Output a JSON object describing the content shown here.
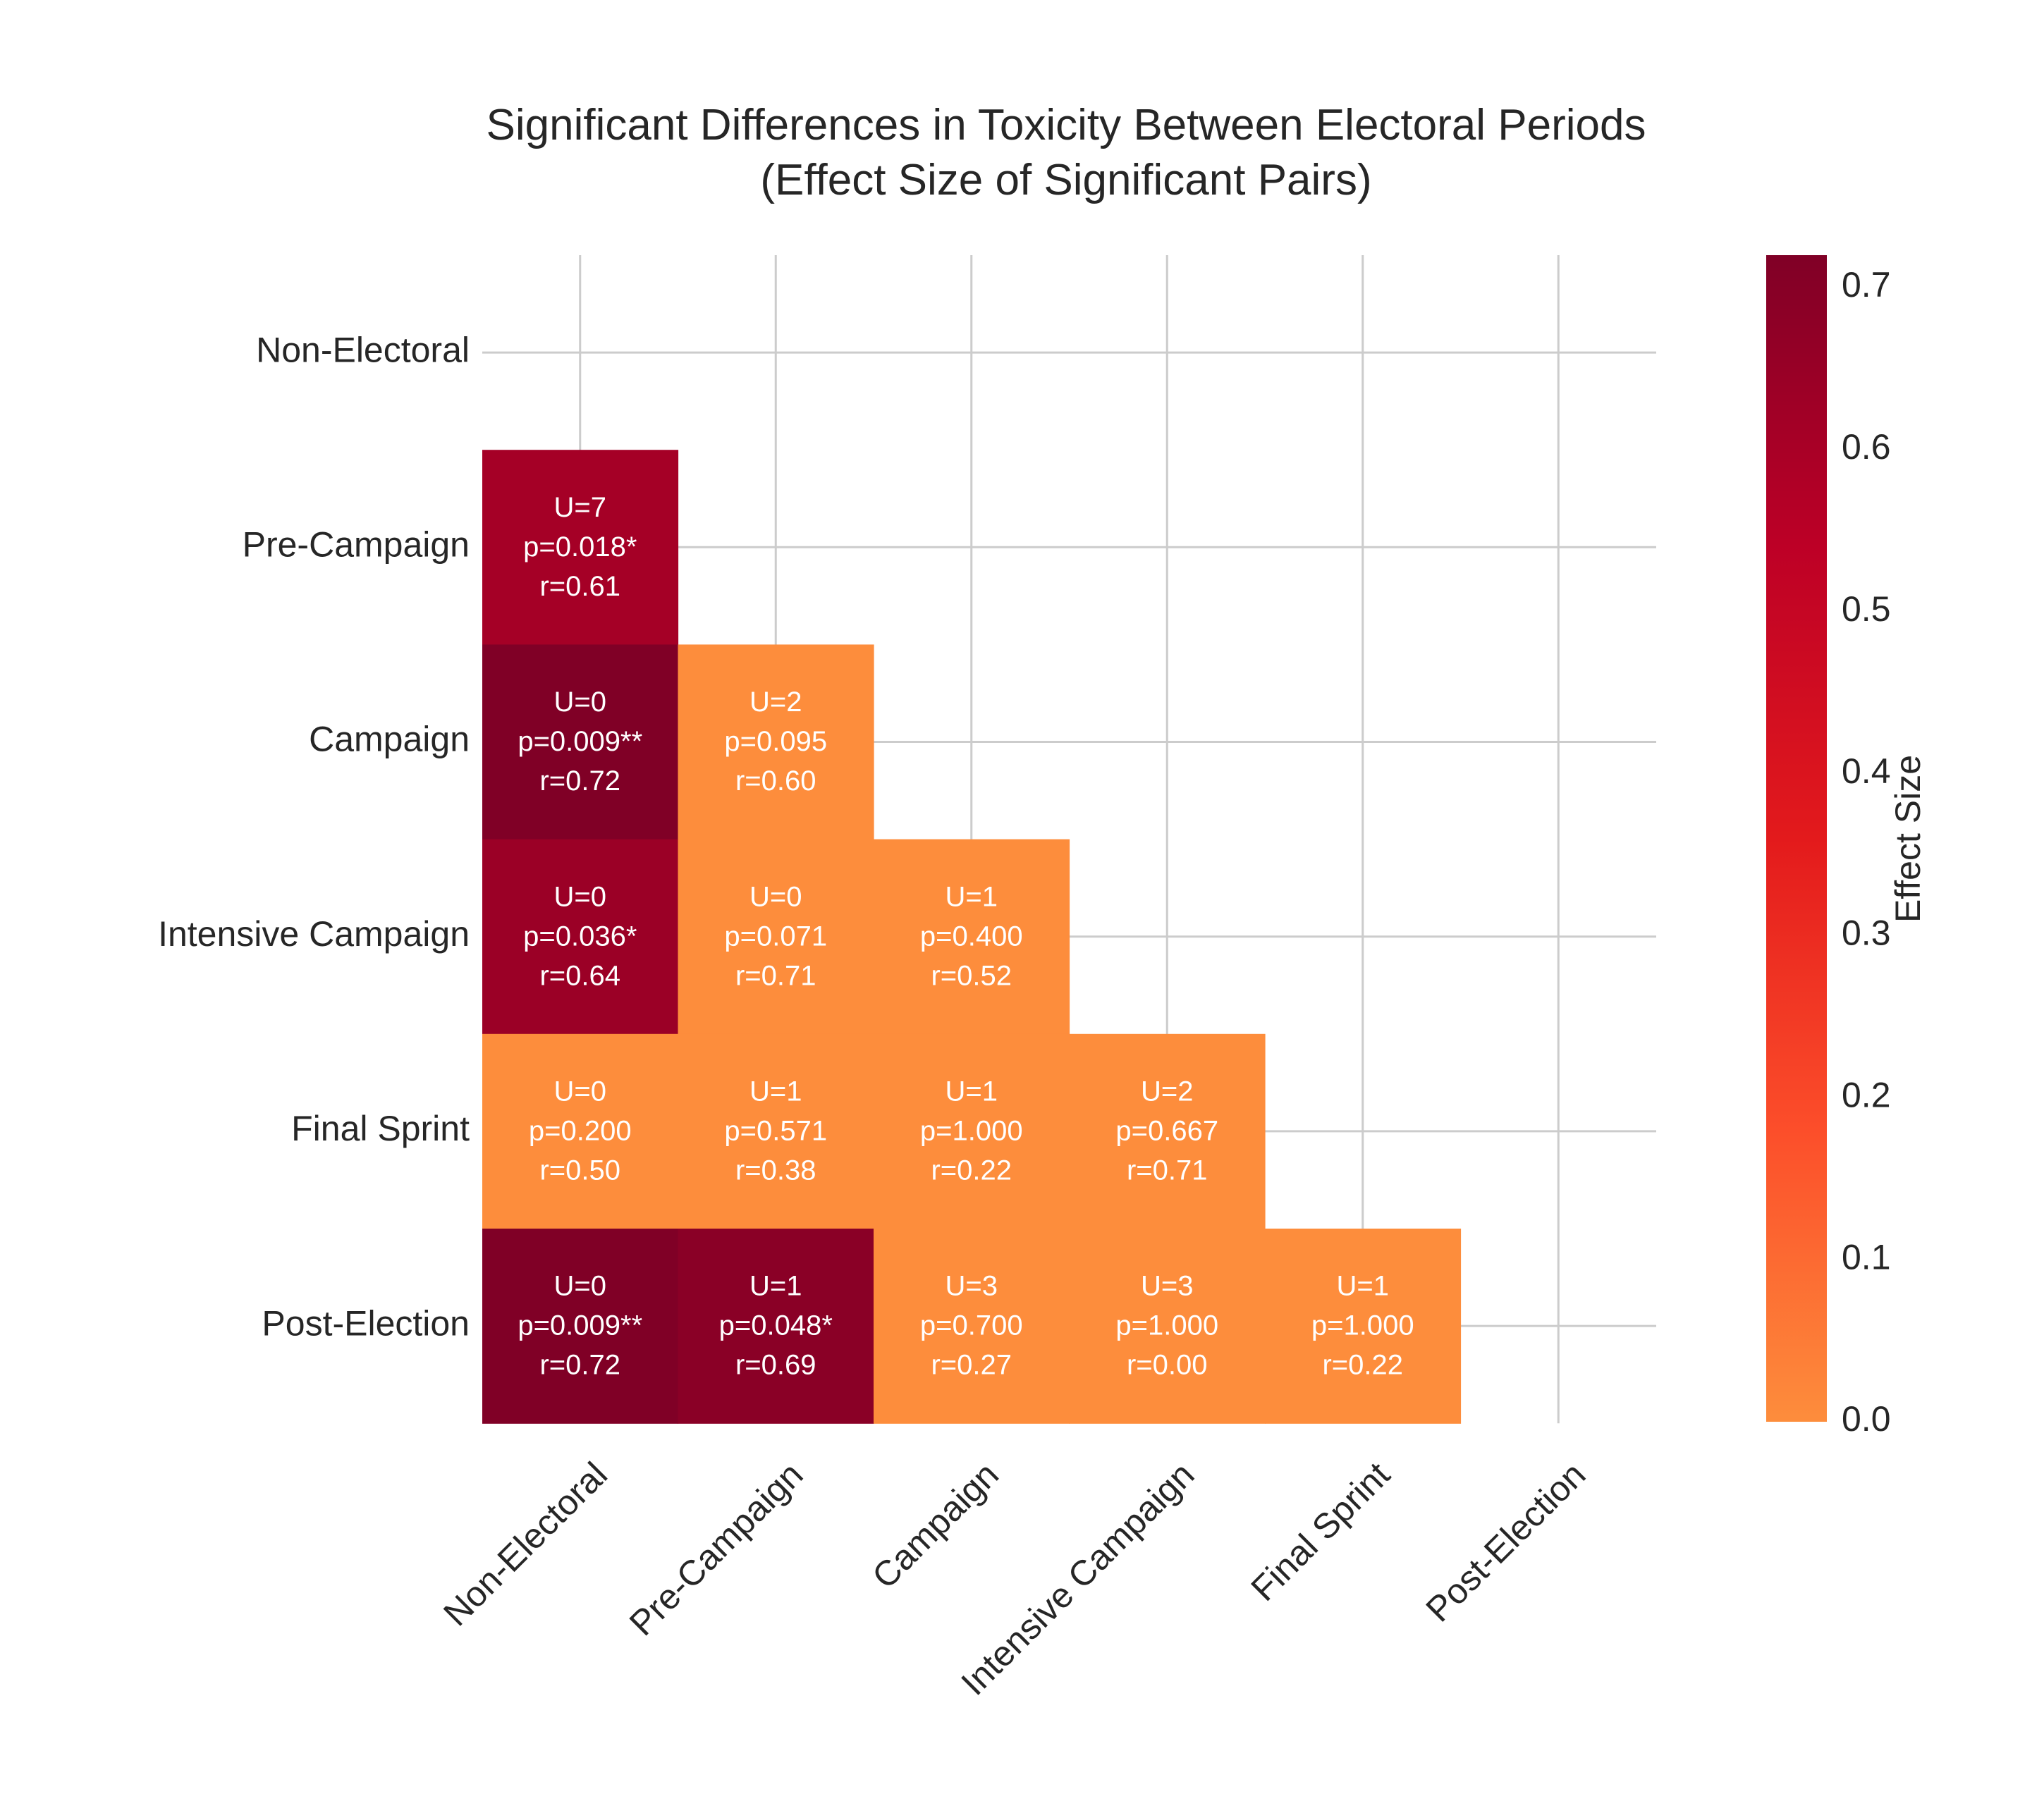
{
  "chart_data": {
    "type": "heatmap",
    "title": "Significant Differences in Toxicity Between Electoral Periods",
    "subtitle": "(Effect Size of Significant Pairs)",
    "xlabel": "",
    "ylabel": "",
    "categories": [
      "Non-Electoral",
      "Pre-Campaign",
      "Campaign",
      "Intensive Campaign",
      "Final Sprint",
      "Post-Election"
    ],
    "grid": true,
    "colorbar": {
      "label": "Effect Size",
      "range": [
        0.0,
        0.72
      ],
      "ticks": [
        "0.0",
        "0.1",
        "0.2",
        "0.3",
        "0.4",
        "0.5",
        "0.6",
        "0.7"
      ],
      "colors": [
        "#fd8d3c",
        "#fc4e2a",
        "#e31a1c",
        "#bd0026",
        "#800026"
      ],
      "placement": "right"
    },
    "nonsignificant_color": "#fd8d3c",
    "cells": [
      {
        "row": 1,
        "col": 0,
        "U": "U=7",
        "p": "p=0.018*",
        "r": "r=0.61",
        "effect": 0.61,
        "significant": true
      },
      {
        "row": 2,
        "col": 0,
        "U": "U=0",
        "p": "p=0.009**",
        "r": "r=0.72",
        "effect": 0.72,
        "significant": true
      },
      {
        "row": 2,
        "col": 1,
        "U": "U=2",
        "p": "p=0.095",
        "r": "r=0.60",
        "effect": 0.6,
        "significant": false
      },
      {
        "row": 3,
        "col": 0,
        "U": "U=0",
        "p": "p=0.036*",
        "r": "r=0.64",
        "effect": 0.64,
        "significant": true
      },
      {
        "row": 3,
        "col": 1,
        "U": "U=0",
        "p": "p=0.071",
        "r": "r=0.71",
        "effect": 0.71,
        "significant": false
      },
      {
        "row": 3,
        "col": 2,
        "U": "U=1",
        "p": "p=0.400",
        "r": "r=0.52",
        "effect": 0.52,
        "significant": false
      },
      {
        "row": 4,
        "col": 0,
        "U": "U=0",
        "p": "p=0.200",
        "r": "r=0.50",
        "effect": 0.5,
        "significant": false
      },
      {
        "row": 4,
        "col": 1,
        "U": "U=1",
        "p": "p=0.571",
        "r": "r=0.38",
        "effect": 0.38,
        "significant": false
      },
      {
        "row": 4,
        "col": 2,
        "U": "U=1",
        "p": "p=1.000",
        "r": "r=0.22",
        "effect": 0.22,
        "significant": false
      },
      {
        "row": 4,
        "col": 3,
        "U": "U=2",
        "p": "p=0.667",
        "r": "r=0.71",
        "effect": 0.71,
        "significant": false
      },
      {
        "row": 5,
        "col": 0,
        "U": "U=0",
        "p": "p=0.009**",
        "r": "r=0.72",
        "effect": 0.72,
        "significant": true
      },
      {
        "row": 5,
        "col": 1,
        "U": "U=1",
        "p": "p=0.048*",
        "r": "r=0.69",
        "effect": 0.69,
        "significant": true
      },
      {
        "row": 5,
        "col": 2,
        "U": "U=3",
        "p": "p=0.700",
        "r": "r=0.27",
        "effect": 0.27,
        "significant": false
      },
      {
        "row": 5,
        "col": 3,
        "U": "U=3",
        "p": "p=1.000",
        "r": "r=0.00",
        "effect": 0.0,
        "significant": false
      },
      {
        "row": 5,
        "col": 4,
        "U": "U=1",
        "p": "p=1.000",
        "r": "r=0.22",
        "effect": 0.22,
        "significant": false
      }
    ]
  }
}
